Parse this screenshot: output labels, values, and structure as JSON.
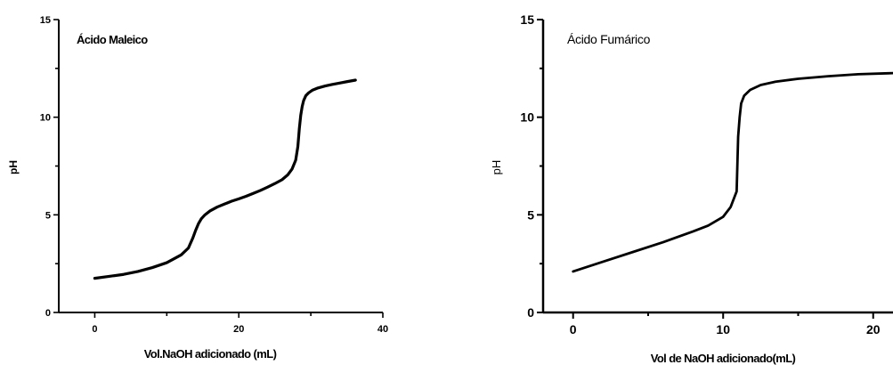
{
  "chart_data": [
    {
      "type": "line",
      "title": "Ácido Maleico",
      "xlabel": "Vol.NaOH adicionado (mL)",
      "ylabel": "pH",
      "xlim": [
        -5,
        40
      ],
      "ylim": [
        0,
        15
      ],
      "xticks": [
        0,
        20,
        40
      ],
      "yticks": [
        0,
        5,
        10,
        15
      ],
      "grid": false,
      "series": [
        {
          "x": [
            0,
            2,
            4,
            6,
            8,
            10,
            11,
            12,
            13,
            13.6,
            14,
            14.4,
            14.8,
            15.3,
            16,
            17,
            18,
            19,
            20,
            21,
            22,
            23,
            24,
            25,
            26,
            26.8,
            27.4,
            27.9,
            28.2,
            28.4,
            28.6,
            28.8,
            29,
            29.3,
            29.7,
            30.2,
            31,
            32,
            33,
            34,
            35,
            36.2
          ],
          "y": [
            1.75,
            1.85,
            1.95,
            2.1,
            2.3,
            2.55,
            2.75,
            2.95,
            3.3,
            3.8,
            4.2,
            4.55,
            4.8,
            5.0,
            5.2,
            5.4,
            5.55,
            5.7,
            5.82,
            5.95,
            6.1,
            6.25,
            6.42,
            6.6,
            6.8,
            7.05,
            7.35,
            7.8,
            8.5,
            9.4,
            10.1,
            10.55,
            10.85,
            11.1,
            11.25,
            11.38,
            11.5,
            11.6,
            11.68,
            11.75,
            11.82,
            11.9
          ]
        }
      ]
    },
    {
      "type": "line",
      "title": "Ácido Fumárico",
      "xlabel": "Vol de NaOH adicionado(mL)",
      "ylabel": "pH",
      "xlim": [
        -2,
        25
      ],
      "ylim": [
        0,
        15
      ],
      "xticks": [
        0,
        10,
        20
      ],
      "yticks": [
        0,
        5,
        10,
        15
      ],
      "grid": false,
      "series": [
        {
          "x": [
            0,
            2,
            4,
            6,
            8,
            9,
            10,
            10.5,
            10.9,
            11.0,
            11.1,
            11.2,
            11.4,
            11.8,
            12.5,
            13.5,
            15,
            17,
            19,
            21,
            23,
            25
          ],
          "y": [
            2.1,
            2.6,
            3.1,
            3.6,
            4.15,
            4.45,
            4.9,
            5.4,
            6.2,
            9.0,
            10.0,
            10.7,
            11.1,
            11.4,
            11.65,
            11.82,
            11.97,
            12.1,
            12.2,
            12.25,
            12.3,
            12.32
          ]
        }
      ]
    }
  ]
}
